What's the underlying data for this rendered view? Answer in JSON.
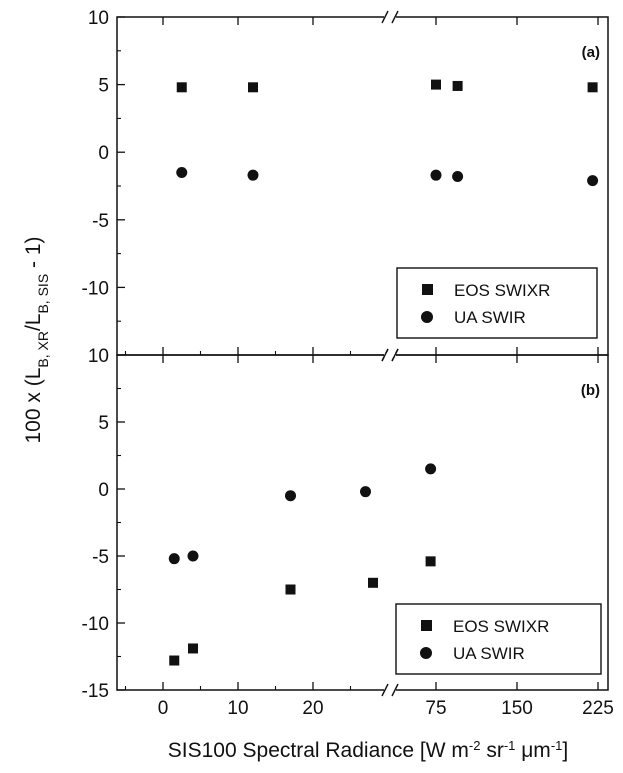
{
  "chart_data": {
    "type": "scatter",
    "shared_x_axis": {
      "label_main": "SIS100 Spectral Radiance [W m",
      "label_sup1": "-2",
      "label_mid1": " sr",
      "label_sup2": "-1",
      "label_mid2": " μm",
      "label_sup3": "-1",
      "label_end": "]",
      "segments": [
        {
          "range": [
            -5,
            30
          ],
          "ticks": [
            0,
            10,
            20
          ],
          "minor": [
            -5,
            5,
            15,
            25
          ]
        },
        {
          "range": [
            60,
            225
          ],
          "ticks": [
            75,
            150,
            225
          ],
          "minor": []
        }
      ]
    },
    "shared_y_axis": {
      "label_pre": "100 x (L",
      "label_sub1": "B, XR",
      "label_mid": "/L",
      "label_sub2": "B, SIS",
      "label_post": " - 1)"
    },
    "panels": [
      {
        "label": "(a)",
        "ylim": [
          -15,
          10
        ],
        "yticks": [
          "10",
          "5",
          "0",
          "-5",
          "-10"
        ],
        "legend_position": "bottom-right",
        "series": [
          {
            "name": "EOS SWIXR",
            "marker": "square",
            "points": [
              [
                2.5,
                4.8
              ],
              [
                12,
                4.8
              ],
              [
                75,
                5.0
              ],
              [
                95,
                4.9
              ],
              [
                220,
                4.8
              ]
            ]
          },
          {
            "name": "UA SWIR",
            "marker": "circle",
            "points": [
              [
                2.5,
                -1.5
              ],
              [
                12,
                -1.7
              ],
              [
                75,
                -1.7
              ],
              [
                95,
                -1.8
              ],
              [
                220,
                -2.1
              ]
            ]
          }
        ]
      },
      {
        "label": "(b)",
        "ylim": [
          -15,
          10
        ],
        "yticks": [
          "10",
          "5",
          "0",
          "-5",
          "-10",
          "-15"
        ],
        "legend_position": "bottom-right",
        "series": [
          {
            "name": "EOS SWIXR",
            "marker": "square",
            "points": [
              [
                1.5,
                -12.8
              ],
              [
                4,
                -11.9
              ],
              [
                17,
                -7.5
              ],
              [
                28,
                -7.0
              ],
              [
                70,
                -5.4
              ]
            ]
          },
          {
            "name": "UA SWIR",
            "marker": "circle",
            "points": [
              [
                1.5,
                -5.2
              ],
              [
                4,
                -5.0
              ],
              [
                17,
                -0.5
              ],
              [
                27,
                -0.2
              ],
              [
                70,
                1.5
              ]
            ]
          }
        ]
      }
    ]
  }
}
